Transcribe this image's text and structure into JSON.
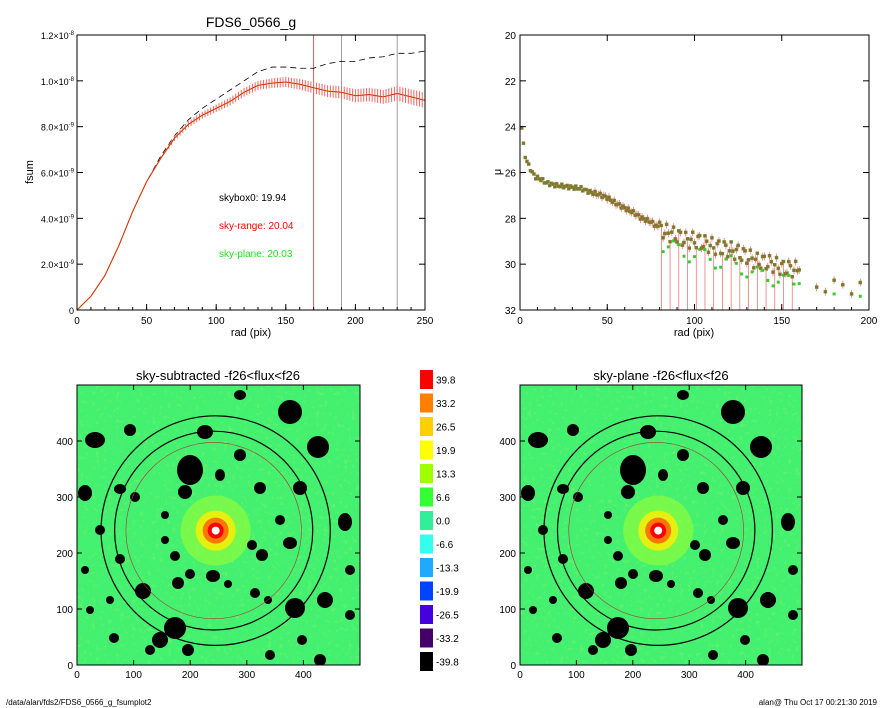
{
  "footer": {
    "path": "/data/alan/fds2/FDS6_0566_g_fsumplot2",
    "stamp": "alan@  Thu Oct 17 00:21:30 2019"
  },
  "chart_data": [
    {
      "type": "line",
      "title": "FDS6_0566_g",
      "xlabel": "rad (pix)",
      "ylabel": "fsum",
      "xlim": [
        0,
        250
      ],
      "ylim": [
        0,
        1.2e-08
      ],
      "xticks": [
        "0",
        "50",
        "100",
        "150",
        "200",
        "250"
      ],
      "yticks": [
        {
          "v": 0,
          "mant": "0",
          "exp": ""
        },
        {
          "v": 2e-09,
          "mant": "2.0×10",
          "exp": "-9"
        },
        {
          "v": 4e-09,
          "mant": "4.0×10",
          "exp": "-9"
        },
        {
          "v": 6e-09,
          "mant": "6.0×10",
          "exp": "-9"
        },
        {
          "v": 8e-09,
          "mant": "8.0×10",
          "exp": "-9"
        },
        {
          "v": 1e-08,
          "mant": "1.0×10",
          "exp": "-8"
        },
        {
          "v": 1.2e-08,
          "mant": "1.2×10",
          "exp": "-8"
        }
      ],
      "vlines": [
        {
          "x": 170,
          "color": "#cc3333"
        },
        {
          "x": 190,
          "color": "#888888"
        },
        {
          "x": 230,
          "color": "#888888"
        }
      ],
      "annotations": [
        {
          "text": "skybox0: 19.94",
          "color": "#000000"
        },
        {
          "text": "sky-range: 20.04",
          "color": "#ff0000"
        },
        {
          "text": "sky-plane: 20.03",
          "color": "#22dd22"
        }
      ],
      "series": [
        {
          "style": "dashed",
          "color": "#000000",
          "x": [
            0,
            10,
            20,
            30,
            40,
            50,
            60,
            70,
            80,
            90,
            100,
            110,
            120,
            130,
            140,
            150,
            160,
            170,
            180,
            190,
            200,
            210,
            220,
            230,
            240,
            250
          ],
          "y": [
            0,
            6e-10,
            1.5e-09,
            2.8e-09,
            4.3e-09,
            5.6e-09,
            6.7e-09,
            7.6e-09,
            8.3e-09,
            8.8e-09,
            9.2e-09,
            9.6e-09,
            1e-08,
            1.04e-08,
            1.06e-08,
            1.06e-08,
            1.055e-08,
            1.055e-08,
            1.075e-08,
            1.085e-08,
            1.085e-08,
            1.1e-08,
            1.105e-08,
            1.12e-08,
            1.12e-08,
            1.13e-08
          ]
        },
        {
          "style": "solid-with-errorbars",
          "color": "#cc2222",
          "x": [
            0,
            10,
            20,
            30,
            40,
            50,
            60,
            70,
            80,
            90,
            100,
            110,
            120,
            130,
            140,
            150,
            160,
            170,
            180,
            190,
            200,
            210,
            220,
            230,
            240,
            250
          ],
          "y": [
            0,
            6e-10,
            1.5e-09,
            2.8e-09,
            4.3e-09,
            5.6e-09,
            6.6e-09,
            7.5e-09,
            8.1e-09,
            8.5e-09,
            8.8e-09,
            9.1e-09,
            9.5e-09,
            9.8e-09,
            9.9e-09,
            9.95e-09,
            9.85e-09,
            9.7e-09,
            9.55e-09,
            9.5e-09,
            9.35e-09,
            9.4e-09,
            9.3e-09,
            9.45e-09,
            9.3e-09,
            9.15e-09
          ]
        }
      ]
    },
    {
      "type": "scatter",
      "title": "",
      "xlabel": "rad (pix)",
      "ylabel": "μ",
      "xlim": [
        0,
        200
      ],
      "ylim": [
        32,
        20
      ],
      "xticks": [
        "0",
        "50",
        "100",
        "150",
        "200"
      ],
      "yticks": [
        "20",
        "22",
        "24",
        "26",
        "28",
        "30",
        "32"
      ],
      "points": [
        [
          1,
          24.0
        ],
        [
          2,
          24.8
        ],
        [
          3,
          25.3
        ],
        [
          5,
          25.7
        ],
        [
          7,
          26.0
        ],
        [
          9,
          26.2
        ],
        [
          12,
          26.3
        ],
        [
          15,
          26.45
        ],
        [
          20,
          26.55
        ],
        [
          25,
          26.6
        ],
        [
          30,
          26.65
        ],
        [
          35,
          26.7
        ],
        [
          40,
          26.85
        ],
        [
          45,
          26.95
        ],
        [
          50,
          27.1
        ],
        [
          55,
          27.35
        ],
        [
          60,
          27.55
        ],
        [
          65,
          27.75
        ],
        [
          70,
          28.0
        ],
        [
          75,
          28.15
        ],
        [
          80,
          28.45
        ],
        [
          85,
          28.65
        ],
        [
          90,
          28.75
        ],
        [
          95,
          28.95
        ],
        [
          100,
          28.95
        ],
        [
          105,
          29.05
        ],
        [
          110,
          29.2
        ],
        [
          115,
          29.3
        ],
        [
          120,
          29.35
        ],
        [
          125,
          29.5
        ],
        [
          130,
          29.65
        ],
        [
          135,
          29.85
        ],
        [
          140,
          29.9
        ],
        [
          145,
          30.0
        ],
        [
          150,
          30.15
        ],
        [
          155,
          30.2
        ],
        [
          160,
          30.25
        ],
        [
          170,
          31.0
        ],
        [
          175,
          31.2
        ],
        [
          180,
          30.7
        ],
        [
          185,
          30.9
        ],
        [
          190,
          31.3
        ],
        [
          195,
          30.8
        ]
      ]
    },
    {
      "type": "heatmap",
      "title": "sky-subtracted -f26<flux<f26",
      "xlim": [
        0,
        500
      ],
      "ylim": [
        0,
        500
      ],
      "xticks": [
        "0",
        "100",
        "200",
        "300",
        "400"
      ],
      "yticks": [
        "0",
        "100",
        "200",
        "300",
        "400"
      ]
    },
    {
      "type": "heatmap",
      "title": "sky-plane -f26<flux<f26",
      "xlim": [
        0,
        500
      ],
      "ylim": [
        0,
        500
      ],
      "xticks": [
        "0",
        "100",
        "200",
        "300",
        "400"
      ],
      "yticks": [
        "0",
        "100",
        "200",
        "300",
        "400"
      ]
    },
    {
      "type": "colorbar",
      "levels": [
        {
          "label": "39.8",
          "color": "#ff0000"
        },
        {
          "label": "33.2",
          "color": "#ff7f00"
        },
        {
          "label": "26.5",
          "color": "#ffd000"
        },
        {
          "label": "19.9",
          "color": "#ffff00"
        },
        {
          "label": "13.3",
          "color": "#9fff00"
        },
        {
          "label": "6.6",
          "color": "#33ff33"
        },
        {
          "label": "0.0",
          "color": "#33ee99"
        },
        {
          "label": "-6.6",
          "color": "#33ffee"
        },
        {
          "label": "-13.3",
          "color": "#1faaff"
        },
        {
          "label": "-19.9",
          "color": "#0044ff"
        },
        {
          "label": "-26.5",
          "color": "#4400dd"
        },
        {
          "label": "-33.2",
          "color": "#440066"
        },
        {
          "label": "-39.8",
          "color": "#000000"
        }
      ]
    }
  ]
}
